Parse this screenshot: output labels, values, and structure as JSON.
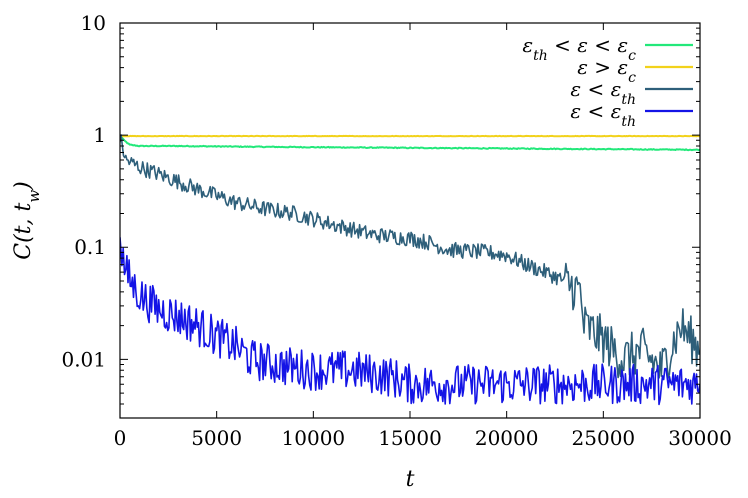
{
  "chart_data": {
    "type": "line",
    "xlabel": "t",
    "ylabel": "C(t, t_w)",
    "ylabel_parts": {
      "main": "C(t, t",
      "sub": "w",
      "close": ")"
    },
    "xlim": [
      0,
      30000
    ],
    "ylim": [
      0.003,
      10
    ],
    "yscale": "log",
    "grid": false,
    "legend_position": "top-right",
    "x_ticks": [
      0,
      5000,
      10000,
      15000,
      20000,
      25000,
      30000
    ],
    "x_tick_labels": [
      "0",
      "5000",
      "10000",
      "15000",
      "20000",
      "25000",
      "30000"
    ],
    "y_ticks": [
      0.01,
      0.1,
      1,
      10
    ],
    "y_tick_labels": [
      "0.01",
      "0.1",
      "1",
      "10"
    ],
    "series": [
      {
        "name": "εth < ε < εc",
        "legend_parts": [
          [
            "ε",
            "th"
          ],
          [
            " < ε < ",
            ""
          ],
          [
            "ε",
            "c"
          ]
        ],
        "color": "#22e87a",
        "x": [
          0,
          200,
          500,
          1000,
          3000,
          6000,
          10000,
          15000,
          20000,
          25000,
          30000
        ],
        "y": [
          1.0,
          0.9,
          0.82,
          0.8,
          0.8,
          0.79,
          0.78,
          0.77,
          0.76,
          0.75,
          0.74
        ]
      },
      {
        "name": "ε > εc",
        "legend_parts": [
          [
            "ε > ",
            ""
          ],
          [
            "ε",
            "c"
          ]
        ],
        "color": "#f2d21b",
        "x": [
          0,
          5000,
          10000,
          15000,
          20000,
          25000,
          30000
        ],
        "y": [
          0.98,
          0.98,
          0.98,
          0.98,
          0.98,
          0.98,
          0.98
        ]
      },
      {
        "name": "ε < εth",
        "legend_parts": [
          [
            "ε < ",
            ""
          ],
          [
            "ε",
            "th"
          ]
        ],
        "color": "#2e5f7a",
        "x": [
          0,
          300,
          1000,
          2000,
          4000,
          6000,
          7500,
          9000,
          11000,
          13000,
          15000,
          16000,
          17000,
          19000,
          20000,
          21000,
          22000,
          23000,
          23800,
          24000,
          25000,
          26000,
          27000,
          28000,
          29000,
          30000
        ],
        "y": [
          0.95,
          0.6,
          0.52,
          0.45,
          0.33,
          0.25,
          0.22,
          0.2,
          0.16,
          0.13,
          0.12,
          0.11,
          0.095,
          0.09,
          0.085,
          0.07,
          0.06,
          0.05,
          0.04,
          0.02,
          0.015,
          0.01,
          0.012,
          0.008,
          0.02,
          0.012
        ]
      },
      {
        "name": "ε < εth",
        "legend_parts": [
          [
            "ε < ",
            ""
          ],
          [
            "ε",
            "th"
          ]
        ],
        "color": "#1414e6",
        "x": [
          0,
          100,
          300,
          700,
          1200,
          2000,
          3000,
          4000,
          5000,
          6000,
          6800,
          8000,
          10000,
          12000,
          14000,
          15000,
          17000,
          20000,
          23000,
          25000,
          28000,
          30000
        ],
        "y": [
          0.15,
          0.09,
          0.06,
          0.045,
          0.035,
          0.028,
          0.024,
          0.02,
          0.016,
          0.013,
          0.01,
          0.009,
          0.008,
          0.008,
          0.007,
          0.006,
          0.006,
          0.006,
          0.006,
          0.006,
          0.006,
          0.006
        ]
      }
    ]
  }
}
